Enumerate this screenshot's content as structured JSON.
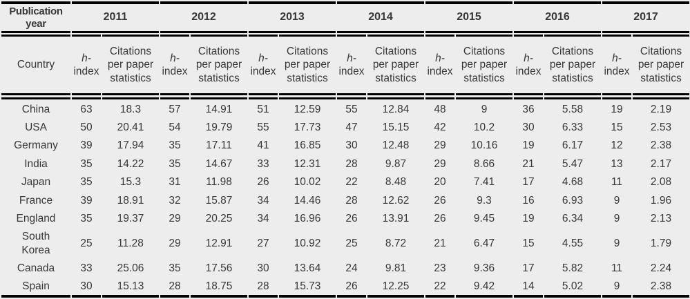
{
  "table": {
    "corner_header": "Publication year",
    "country_header": "Country",
    "years": [
      "2011",
      "2012",
      "2013",
      "2014",
      "2015",
      "2016",
      "2017"
    ],
    "subheader": {
      "h_index_top": "h-",
      "h_index_bottom": "index",
      "citations": "Citations per paper statistics"
    },
    "rows": [
      {
        "country": "China",
        "values": [
          "63",
          "18.3",
          "57",
          "14.91",
          "51",
          "12.59",
          "55",
          "12.84",
          "48",
          "9",
          "36",
          "5.58",
          "19",
          "2.19"
        ]
      },
      {
        "country": "USA",
        "values": [
          "50",
          "20.41",
          "54",
          "19.79",
          "55",
          "17.73",
          "47",
          "15.15",
          "42",
          "10.2",
          "30",
          "6.33",
          "15",
          "2.53"
        ]
      },
      {
        "country": "Germany",
        "values": [
          "39",
          "17.94",
          "35",
          "17.11",
          "41",
          "16.85",
          "30",
          "12.48",
          "29",
          "10.16",
          "19",
          "6.17",
          "12",
          "2.38"
        ]
      },
      {
        "country": "India",
        "values": [
          "35",
          "14.22",
          "35",
          "14.67",
          "33",
          "12.31",
          "28",
          "9.87",
          "29",
          "8.66",
          "21",
          "5.47",
          "13",
          "2.17"
        ]
      },
      {
        "country": "Japan",
        "values": [
          "35",
          "15.3",
          "31",
          "11.98",
          "26",
          "10.02",
          "22",
          "8.48",
          "20",
          "7.41",
          "17",
          "4.68",
          "11",
          "2.08"
        ]
      },
      {
        "country": "France",
        "values": [
          "39",
          "18.91",
          "32",
          "15.87",
          "34",
          "14.46",
          "28",
          "12.62",
          "26",
          "9.3",
          "16",
          "6.93",
          "9",
          "1.96"
        ]
      },
      {
        "country": "England",
        "values": [
          "35",
          "19.37",
          "29",
          "20.25",
          "34",
          "16.96",
          "26",
          "13.91",
          "26",
          "9.45",
          "19",
          "6.34",
          "9",
          "2.13"
        ]
      },
      {
        "country": "South Korea",
        "values": [
          "25",
          "11.28",
          "29",
          "12.91",
          "27",
          "10.92",
          "25",
          "8.72",
          "21",
          "6.47",
          "15",
          "4.55",
          "9",
          "1.79"
        ]
      },
      {
        "country": "Canada",
        "values": [
          "33",
          "25.06",
          "35",
          "17.56",
          "30",
          "13.64",
          "24",
          "9.81",
          "23",
          "9.36",
          "17",
          "5.82",
          "11",
          "2.24"
        ]
      },
      {
        "country": "Spain",
        "values": [
          "30",
          "15.13",
          "28",
          "18.75",
          "28",
          "15.73",
          "26",
          "12.25",
          "22",
          "9.42",
          "14",
          "5.02",
          "9",
          "2.38"
        ]
      }
    ]
  },
  "colors": {
    "background": "#ededed",
    "border": "#000000",
    "text": "#373737"
  },
  "layout_hints": {
    "column_widths": {
      "country": "100",
      "h_index": "42",
      "citations": "82"
    }
  }
}
